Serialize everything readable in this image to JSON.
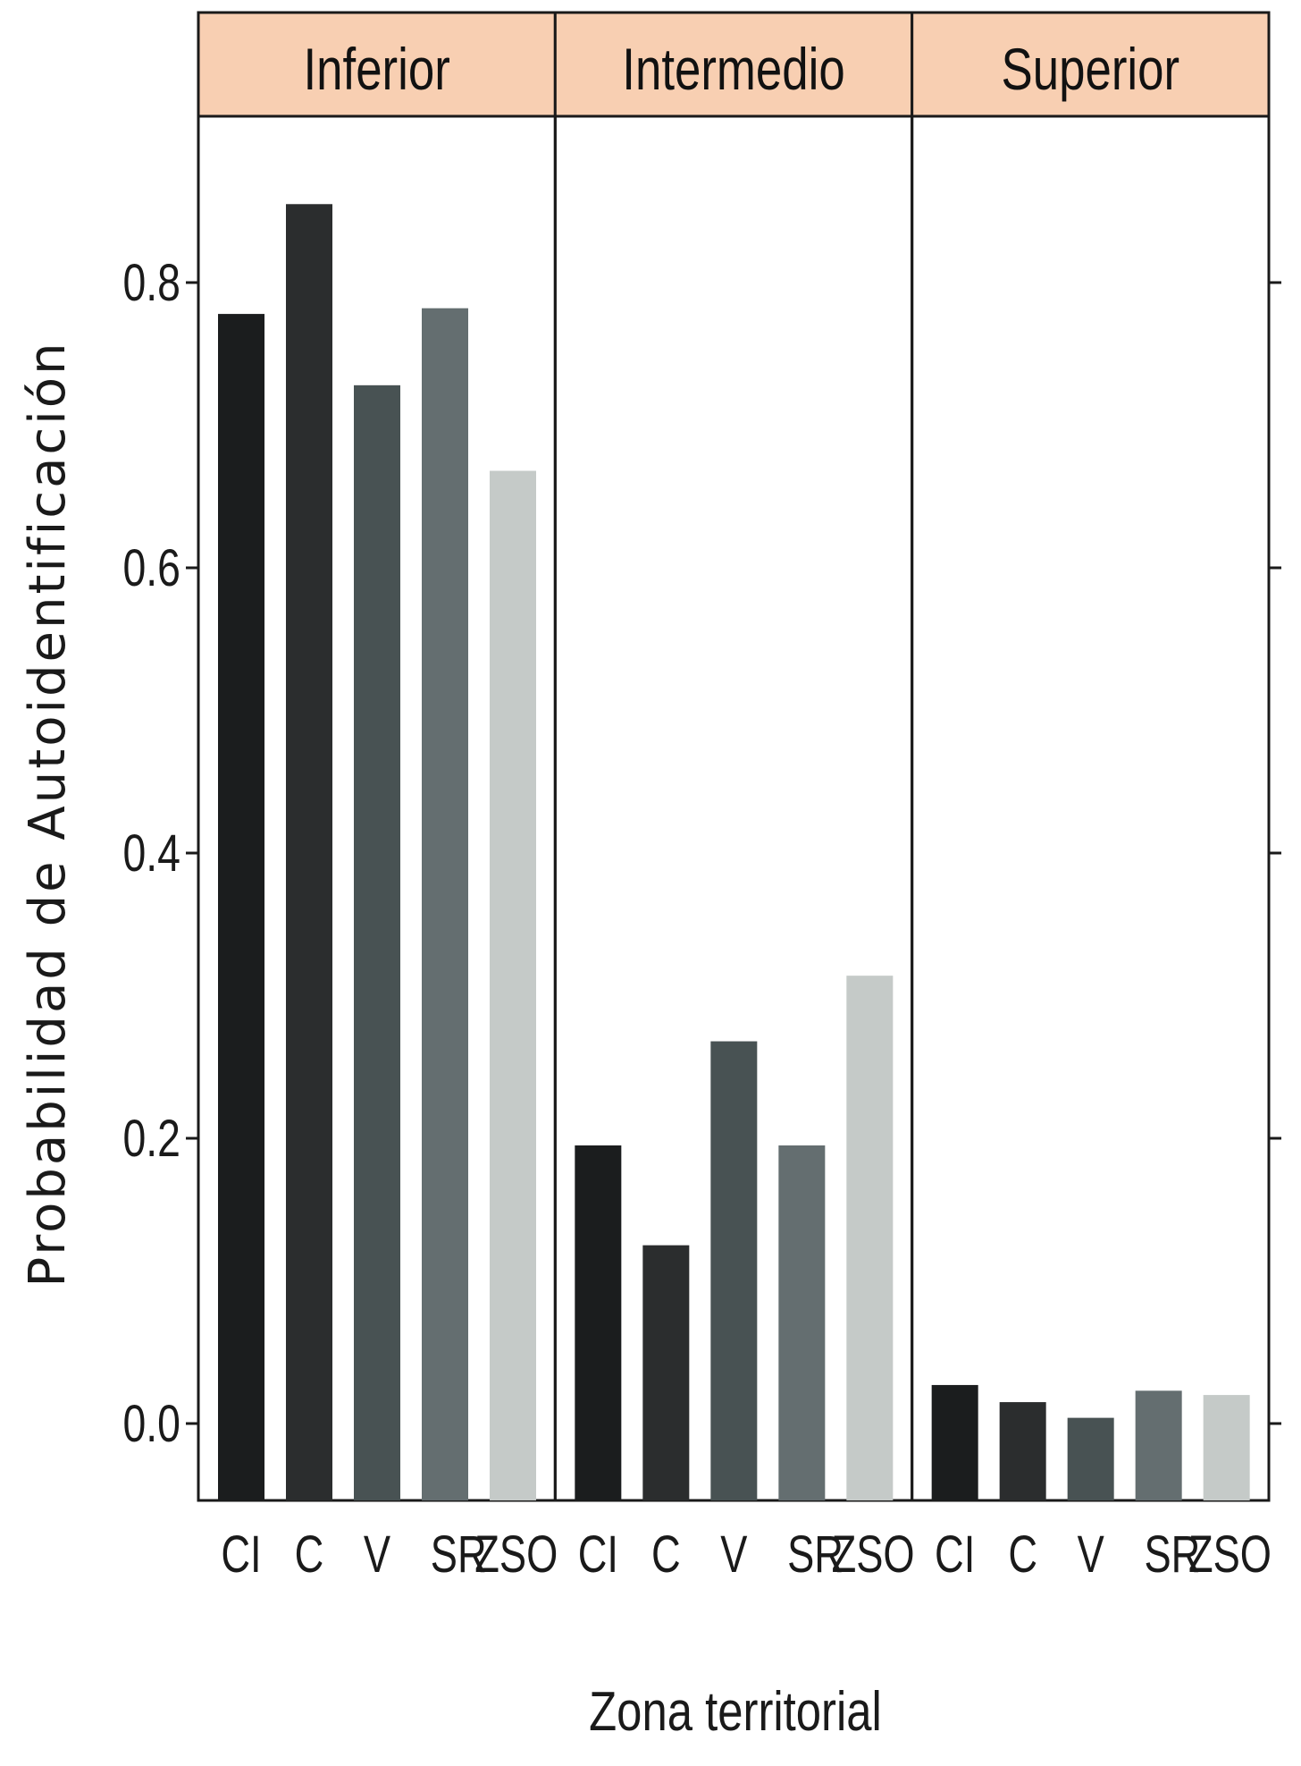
{
  "chart_data": {
    "type": "bar",
    "xlabel": "Zona territorial",
    "ylabel": "Probabilidad de Autoidentificación",
    "ylim": [
      -0.11,
      0.97
    ],
    "yticks": [
      0.0,
      0.2,
      0.4,
      0.6,
      0.8
    ],
    "ytick_labels": [
      "0.0",
      "0.2",
      "0.4",
      "0.6",
      "0.8"
    ],
    "categories": [
      "CI",
      "C",
      "V",
      "SR",
      "ZSO"
    ],
    "category_colors": [
      "#1b1d1e",
      "#2b2d2e",
      "#485253",
      "#646e70",
      "#c5cac8"
    ],
    "strip_color": "#f8cfb2",
    "panels": [
      {
        "name": "Inferior",
        "values": [
          0.778,
          0.855,
          0.728,
          0.782,
          0.668
        ]
      },
      {
        "name": "Intermedio",
        "values": [
          0.195,
          0.125,
          0.268,
          0.195,
          0.314
        ]
      },
      {
        "name": "Superior",
        "values": [
          0.027,
          0.015,
          0.004,
          0.023,
          0.02
        ]
      }
    ],
    "grid": false
  }
}
